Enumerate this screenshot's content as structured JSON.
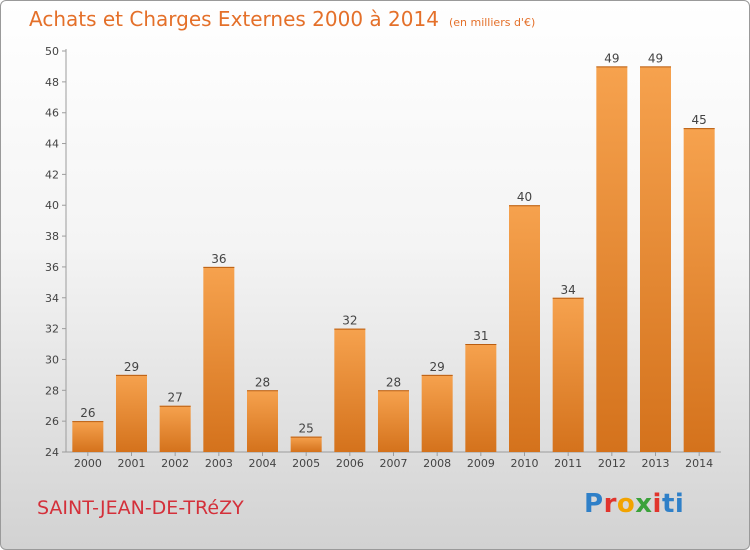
{
  "header": {
    "title": "Achats et Charges Externes 2000 à 2014",
    "unit": "(en milliers d'€)"
  },
  "footer": {
    "city": "SAINT-JEAN-DE-TRéZY",
    "logo_letters": [
      "P",
      "r",
      "o",
      "x",
      "i",
      "ti"
    ]
  },
  "colors": {
    "bar_light": "#f6a24e",
    "bar_dark": "#d4721c",
    "title": "#e4702a",
    "city": "#d4303a"
  },
  "chart_data": {
    "type": "bar",
    "categories": [
      "2000",
      "2001",
      "2002",
      "2003",
      "2004",
      "2005",
      "2006",
      "2007",
      "2008",
      "2009",
      "2010",
      "2011",
      "2012",
      "2013",
      "2014"
    ],
    "values": [
      26,
      29,
      27,
      36,
      28,
      25,
      32,
      28,
      29,
      31,
      40,
      34,
      49,
      49,
      45
    ],
    "title": "Achats et Charges Externes 2000 à 2014",
    "ylim": [
      24,
      50
    ],
    "yticks": [
      24,
      26,
      28,
      30,
      32,
      34,
      36,
      38,
      40,
      42,
      44,
      46,
      48,
      50
    ],
    "grid": false,
    "legend": "none"
  }
}
